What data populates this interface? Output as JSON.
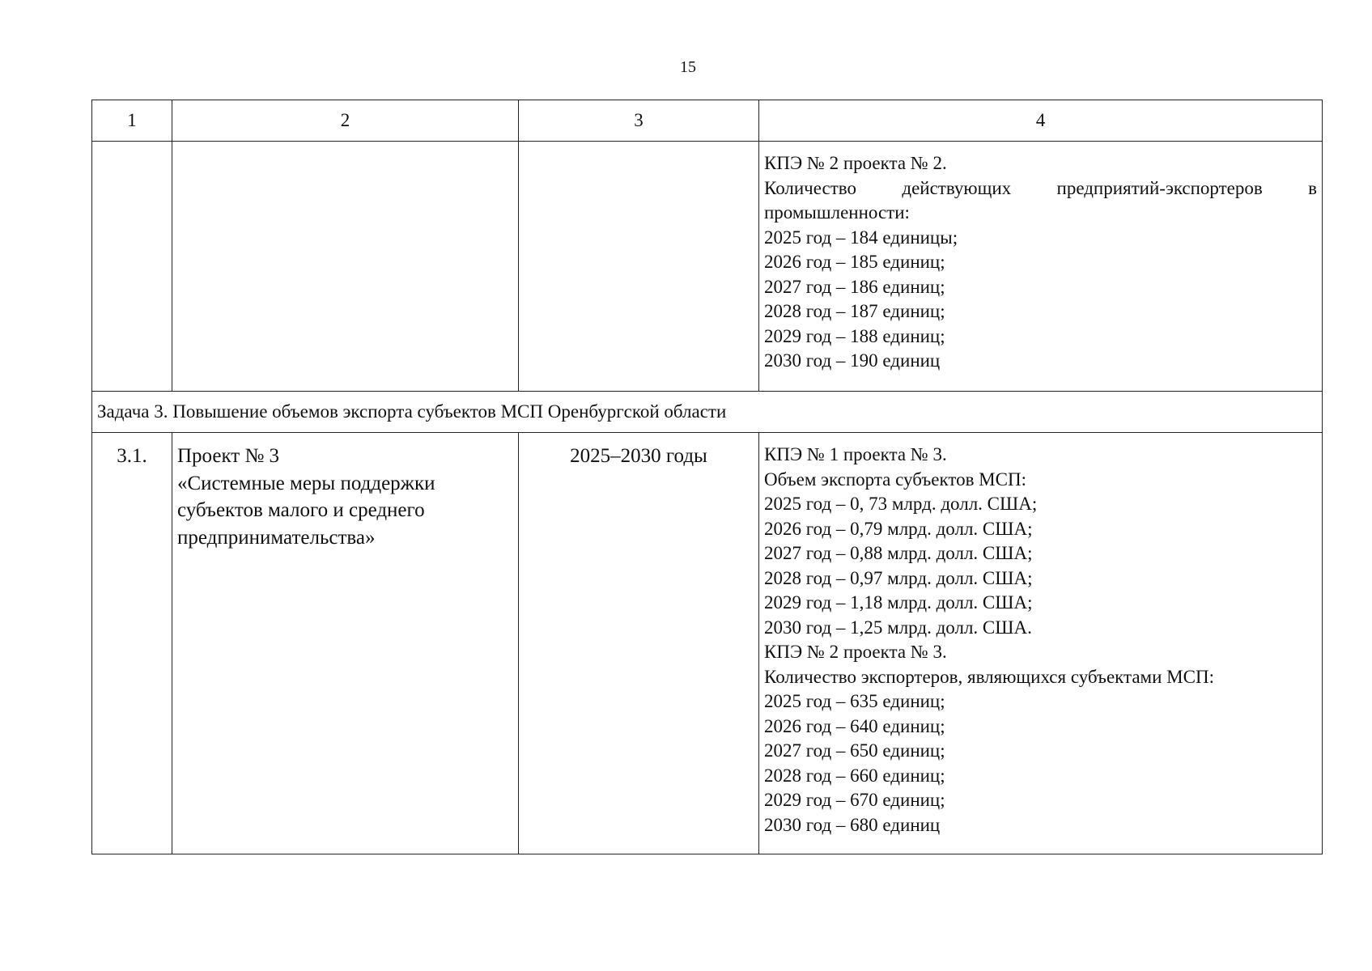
{
  "page_number": "15",
  "header": [
    "1",
    "2",
    "3",
    "4"
  ],
  "row1": {
    "col4": {
      "title": "КПЭ № 2 проекта № 2.",
      "desc_line1": "Количество действующих предприятий-экспортеров в",
      "desc_line2": "промышленности:",
      "values": [
        "2025 год – 184 единицы;",
        "2026 год – 185 единиц;",
        "2027 год – 186 единиц;",
        "2028 год – 187 единиц;",
        "2029 год – 188 единиц;",
        "2030 год – 190 единиц"
      ]
    }
  },
  "task": "Задача 3. Повышение объемов экспорта субъектов МСП Оренбургской области",
  "row3": {
    "num": "3.1.",
    "project": [
      "Проект № 3",
      "«Системные меры поддержки",
      "субъектов малого и среднего",
      "предпринимательства»"
    ],
    "period": "2025–2030 годы",
    "kpi1": {
      "title": "КПЭ № 1 проекта № 3.",
      "desc": "Объем экспорта субъектов МСП:",
      "values": [
        "2025 год – 0, 73 млрд. долл. США;",
        "2026 год – 0,79 млрд. долл. США;",
        "2027 год – 0,88 млрд. долл. США;",
        "2028 год – 0,97 млрд. долл. США;",
        "2029 год – 1,18 млрд. долл. США;",
        "2030 год – 1,25 млрд. долл. США."
      ]
    },
    "kpi2": {
      "title": "КПЭ № 2 проекта № 3.",
      "desc": "Количество экспортеров, являющихся субъектами МСП:",
      "values": [
        "2025 год – 635 единиц;",
        "2026 год – 640 единиц;",
        "2027 год – 650 единиц;",
        "2028 год – 660 единиц;",
        "2029 год – 670 единиц;",
        "2030 год – 680 единиц"
      ]
    }
  }
}
